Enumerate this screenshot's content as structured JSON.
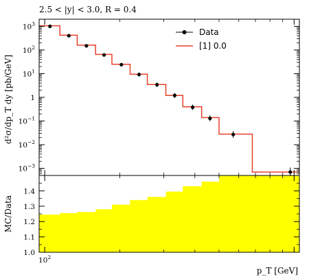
{
  "chart_data": {
    "title": "2.5 < |y| < 3.0, R = 0.4",
    "xlabel": "p_T [GeV]",
    "ylabel_main": "d²σ/dp_T dy [pb/GeV]",
    "ylabel_ratio": "MC/Data",
    "x_scale": "log",
    "y_scale_main": "log",
    "legend_position": "top-right",
    "main_panel": {
      "type": "line",
      "ylim": [
        0.0005,
        2000
      ],
      "y_ticks": [
        {
          "value": 1000,
          "label": "10^3"
        },
        {
          "value": 100,
          "label": "10^2"
        },
        {
          "value": 10,
          "label": "10^1"
        },
        {
          "value": 1,
          "label": "1"
        },
        {
          "value": 0.1,
          "label": "10^−1"
        },
        {
          "value": 0.01,
          "label": "10^−2"
        },
        {
          "value": 0.001,
          "label": "10^−3"
        }
      ],
      "series": [
        {
          "name": "Data",
          "style": "points-with-errorbars",
          "color": "#000000",
          "x": [
            105,
            125,
            147,
            173,
            203,
            239,
            282,
            332,
            392,
            460,
            570,
            965
          ],
          "y": [
            1000,
            400,
            150,
            62,
            24,
            9.2,
            3.4,
            1.2,
            0.38,
            0.13,
            0.027,
            0.0007
          ],
          "yerr_rel": [
            0.12,
            0.12,
            0.14,
            0.16,
            0.18,
            0.22,
            0.25,
            0.28,
            0.3,
            0.32,
            0.38,
            0.55
          ]
        },
        {
          "name": "[1] 0.0",
          "style": "histogram-step",
          "color": "#e8402a",
          "bin_edges": [
            95,
            115,
            135,
            160,
            186,
            220,
            258,
            306,
            358,
            426,
            500,
            680,
            1050
          ],
          "values": [
            1050,
            420,
            160,
            65,
            25,
            9.5,
            3.5,
            1.2,
            0.4,
            0.14,
            0.028,
            0.0007
          ]
        }
      ]
    },
    "ratio_panel": {
      "type": "area",
      "ylim": [
        1.0,
        1.5
      ],
      "y_ticks": [
        1.0,
        1.1,
        1.2,
        1.3,
        1.4
      ],
      "band": {
        "color": "#ffff00",
        "bin_edges": [
          95,
          115,
          135,
          160,
          186,
          220,
          258,
          306,
          358,
          426,
          500,
          680,
          1050
        ],
        "upper": [
          1.245,
          1.255,
          1.262,
          1.28,
          1.31,
          1.34,
          1.36,
          1.395,
          1.43,
          1.46,
          1.5,
          1.5
        ]
      }
    },
    "x_ticks": [
      {
        "value": 100,
        "label": "10^2"
      }
    ],
    "x_domain": [
      95,
      1050
    ]
  }
}
